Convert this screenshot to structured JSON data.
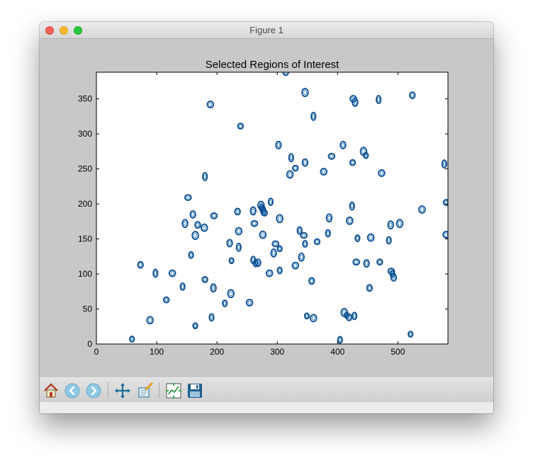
{
  "window": {
    "title": "Figure 1"
  },
  "toolbar": {
    "buttons": [
      "home-icon",
      "back-arrow-icon",
      "forward-arrow-icon",
      "pan-move-icon",
      "zoom-rect-icon",
      "configure-subplots-icon",
      "save-disk-icon"
    ]
  },
  "chart_data": {
    "type": "scatter",
    "title": "Selected Regions of Interest",
    "xlabel": "",
    "ylabel": "",
    "xlim": [
      0,
      583
    ],
    "ylim": [
      0,
      388
    ],
    "xticks": [
      0,
      100,
      200,
      300,
      400,
      500
    ],
    "yticks": [
      0,
      50,
      100,
      150,
      200,
      250,
      300,
      350
    ],
    "grid": false,
    "marker": "contour ellipse",
    "color": "#0a4a8c",
    "points": [
      [
        59,
        7
      ],
      [
        73,
        113
      ],
      [
        89,
        34
      ],
      [
        98,
        101
      ],
      [
        116,
        63
      ],
      [
        126,
        101
      ],
      [
        143,
        82
      ],
      [
        147,
        172
      ],
      [
        152,
        209
      ],
      [
        157,
        127
      ],
      [
        160,
        185
      ],
      [
        164,
        155
      ],
      [
        164,
        26
      ],
      [
        168,
        170
      ],
      [
        179,
        166
      ],
      [
        180,
        239
      ],
      [
        180,
        92
      ],
      [
        189,
        342
      ],
      [
        191,
        38
      ],
      [
        194,
        80
      ],
      [
        195,
        183
      ],
      [
        213,
        58
      ],
      [
        221,
        144
      ],
      [
        223,
        72
      ],
      [
        224,
        119
      ],
      [
        234,
        189
      ],
      [
        236,
        161
      ],
      [
        236,
        138
      ],
      [
        239,
        311
      ],
      [
        254,
        59
      ],
      [
        260,
        120
      ],
      [
        260,
        190
      ],
      [
        262,
        172
      ],
      [
        264,
        115
      ],
      [
        268,
        116
      ],
      [
        273,
        198
      ],
      [
        274,
        195
      ],
      [
        276,
        192
      ],
      [
        276,
        156
      ],
      [
        277,
        189
      ],
      [
        279,
        187
      ],
      [
        287,
        101
      ],
      [
        289,
        203
      ],
      [
        294,
        130
      ],
      [
        297,
        143
      ],
      [
        304,
        105
      ],
      [
        302,
        284
      ],
      [
        304,
        179
      ],
      [
        304,
        136
      ],
      [
        314,
        388
      ],
      [
        321,
        242
      ],
      [
        323,
        266
      ],
      [
        330,
        251
      ],
      [
        330,
        112
      ],
      [
        337,
        162
      ],
      [
        340,
        124
      ],
      [
        344,
        155
      ],
      [
        346,
        143
      ],
      [
        346,
        259
      ],
      [
        346,
        359
      ],
      [
        349,
        40
      ],
      [
        357,
        90
      ],
      [
        360,
        37
      ],
      [
        360,
        325
      ],
      [
        366,
        146
      ],
      [
        377,
        246
      ],
      [
        384,
        158
      ],
      [
        386,
        180
      ],
      [
        390,
        268
      ],
      [
        404,
        6
      ],
      [
        409,
        284
      ],
      [
        411,
        45
      ],
      [
        415,
        41
      ],
      [
        419,
        38
      ],
      [
        420,
        176
      ],
      [
        424,
        197
      ],
      [
        425,
        259
      ],
      [
        426,
        350
      ],
      [
        428,
        40
      ],
      [
        429,
        345
      ],
      [
        431,
        117
      ],
      [
        433,
        151
      ],
      [
        448,
        115
      ],
      [
        443,
        275
      ],
      [
        447,
        269
      ],
      [
        453,
        80
      ],
      [
        455,
        152
      ],
      [
        468,
        349
      ],
      [
        470,
        117
      ],
      [
        473,
        244
      ],
      [
        485,
        148
      ],
      [
        488,
        170
      ],
      [
        489,
        104
      ],
      [
        491,
        100
      ],
      [
        493,
        95
      ],
      [
        503,
        172
      ],
      [
        521,
        14
      ],
      [
        524,
        355
      ],
      [
        540,
        192
      ],
      [
        577,
        257
      ],
      [
        580,
        202
      ],
      [
        580,
        156
      ]
    ]
  }
}
